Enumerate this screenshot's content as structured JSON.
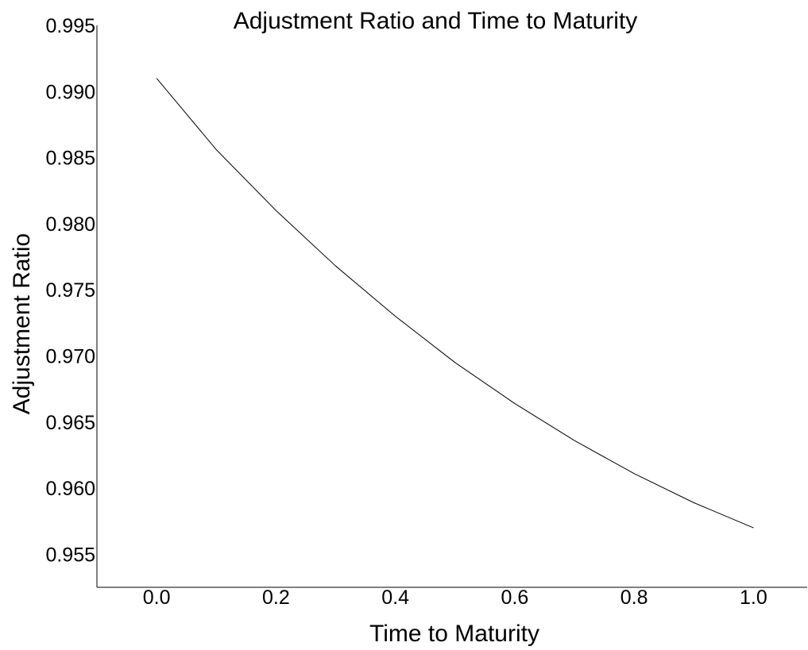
{
  "chart_data": {
    "type": "line",
    "title": "Adjustment Ratio and Time to Maturity",
    "xlabel": "Time to Maturity",
    "ylabel": "Adjustment Ratio",
    "xlim": [
      -0.1,
      1.09
    ],
    "ylim": [
      0.9525,
      0.995
    ],
    "x_ticks": [
      0.0,
      0.2,
      0.4,
      0.6,
      0.8,
      1.0
    ],
    "x_tick_labels": [
      "0.0",
      "0.2",
      "0.4",
      "0.6",
      "0.8",
      "1.0"
    ],
    "y_ticks": [
      0.955,
      0.96,
      0.965,
      0.97,
      0.975,
      0.98,
      0.985,
      0.99,
      0.995
    ],
    "y_tick_labels": [
      "0.955",
      "0.960",
      "0.965",
      "0.970",
      "0.975",
      "0.980",
      "0.985",
      "0.990",
      "0.995"
    ],
    "grid": false,
    "line_color": "#000000",
    "series": [
      {
        "x": [
          0.0,
          0.1,
          0.2,
          0.3,
          0.4,
          0.5,
          0.6,
          0.7,
          0.8,
          0.9,
          1.0
        ],
        "values": [
          0.991,
          0.9856,
          0.981,
          0.9768,
          0.973,
          0.9695,
          0.9664,
          0.9636,
          0.9611,
          0.9589,
          0.957
        ]
      }
    ]
  }
}
